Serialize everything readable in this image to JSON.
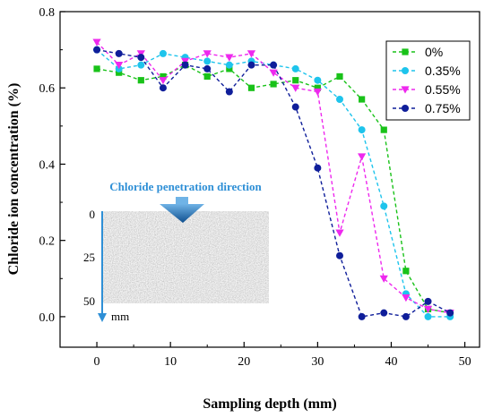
{
  "chart_data": {
    "type": "line",
    "xlabel": "Sampling depth (mm)",
    "ylabel": "Chloride ion concentration (%)",
    "xlim": [
      -5,
      52
    ],
    "ylim": [
      -0.08,
      0.8
    ],
    "xticks": [
      0,
      10,
      20,
      30,
      40,
      50
    ],
    "yticks": [
      0.0,
      0.2,
      0.4,
      0.6,
      0.8
    ],
    "ytick_labels": [
      "0.0",
      "0.2",
      "0.4",
      "0.6",
      "0.8"
    ],
    "grid": false,
    "legend_position": "top-right",
    "series": [
      {
        "name": "0%",
        "color": "#19c219",
        "marker": "square",
        "x": [
          0,
          3,
          6,
          9,
          12,
          15,
          18,
          21,
          24,
          27,
          30,
          33,
          36,
          39,
          42,
          45,
          48
        ],
        "y": [
          0.65,
          0.64,
          0.62,
          0.63,
          0.66,
          0.63,
          0.65,
          0.6,
          0.61,
          0.62,
          0.6,
          0.63,
          0.57,
          0.49,
          0.12,
          0.02,
          0.01
        ]
      },
      {
        "name": "0.35%",
        "color": "#1ec4ec",
        "marker": "circle",
        "x": [
          0,
          3,
          6,
          9,
          12,
          15,
          18,
          21,
          24,
          27,
          30,
          33,
          36,
          39,
          42,
          45,
          48
        ],
        "y": [
          0.7,
          0.65,
          0.66,
          0.69,
          0.68,
          0.67,
          0.66,
          0.67,
          0.66,
          0.65,
          0.62,
          0.57,
          0.49,
          0.29,
          0.06,
          0.0,
          0.0
        ]
      },
      {
        "name": "0.55%",
        "color": "#ee28ee",
        "marker": "triangle-down",
        "x": [
          0,
          3,
          6,
          9,
          12,
          15,
          18,
          21,
          24,
          27,
          30,
          33,
          36,
          39,
          42,
          45,
          48
        ],
        "y": [
          0.72,
          0.66,
          0.69,
          0.62,
          0.67,
          0.69,
          0.68,
          0.69,
          0.64,
          0.6,
          0.59,
          0.22,
          0.42,
          0.1,
          0.05,
          0.02,
          0.01
        ]
      },
      {
        "name": "0.75%",
        "color": "#0f1e9a",
        "marker": "circle",
        "x": [
          0,
          3,
          6,
          9,
          12,
          15,
          18,
          21,
          24,
          27,
          30,
          33,
          36,
          39,
          42,
          45,
          48
        ],
        "y": [
          0.7,
          0.69,
          0.68,
          0.6,
          0.66,
          0.65,
          0.59,
          0.66,
          0.66,
          0.55,
          0.39,
          0.16,
          0.0,
          0.01,
          0.0,
          0.04,
          0.01
        ]
      }
    ],
    "inset": {
      "title": "Chloride penetration direction",
      "title_color": "#2e8fd6",
      "arrow_color": "#1b6fb3",
      "depth_ticks": [
        "0",
        "25",
        "50"
      ],
      "unit": "mm"
    }
  }
}
